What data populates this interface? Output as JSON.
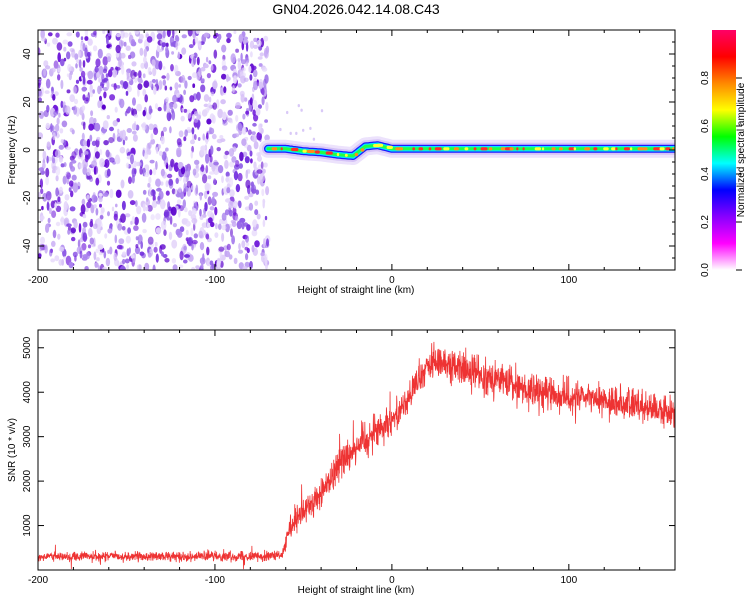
{
  "title": "GN04.2026.042.14.08.C43",
  "colors": {
    "snr_line": "#ee3333",
    "noise_dot": "#6a11d8",
    "background": "#ffffff"
  },
  "chart_data": [
    {
      "type": "heatmap",
      "name": "spectrogram",
      "xlabel": "Height of straight line (km)",
      "ylabel": "Frequency (Hz)",
      "xlim": [
        -200,
        160
      ],
      "ylim": [
        -50,
        50
      ],
      "x_ticks": [
        -200,
        -100,
        0,
        100
      ],
      "x_tick_labels": [
        "-200",
        "-100",
        "0",
        "100"
      ],
      "y_ticks": [
        -40,
        -20,
        0,
        20,
        40
      ],
      "y_tick_labels": [
        "-40",
        "-20",
        "0",
        "20",
        "40"
      ],
      "noise_region_x": [
        -200,
        -70
      ],
      "signal_start_x": -70,
      "signal_track": [
        {
          "x": -70,
          "f": 0.5
        },
        {
          "x": -60,
          "f": 0.5
        },
        {
          "x": -50,
          "f": -0.5
        },
        {
          "x": -40,
          "f": -1
        },
        {
          "x": -30,
          "f": -2
        },
        {
          "x": -22,
          "f": -2.5
        },
        {
          "x": -15,
          "f": 1.5
        },
        {
          "x": -8,
          "f": 2
        },
        {
          "x": 0,
          "f": 0.5
        },
        {
          "x": 20,
          "f": 0.5
        },
        {
          "x": 40,
          "f": 0.5
        },
        {
          "x": 60,
          "f": 0.5
        },
        {
          "x": 80,
          "f": 0.5
        },
        {
          "x": 100,
          "f": 0.5
        },
        {
          "x": 120,
          "f": 0.5
        },
        {
          "x": 140,
          "f": 0.5
        },
        {
          "x": 160,
          "f": 0.5
        }
      ],
      "colorbar": {
        "label": "Normalized spectral amplitude",
        "range": [
          0,
          1
        ],
        "ticks": [
          0.0,
          0.2,
          0.4,
          0.6,
          0.8
        ],
        "tick_labels": [
          "0.0",
          "0.2",
          "0.4",
          "0.6",
          "0.8"
        ],
        "colormap": [
          "#ffffff",
          "#ff00ff",
          "#8800ff",
          "#0000ff",
          "#00ffff",
          "#00ff00",
          "#ffff00",
          "#ff8800",
          "#ff0000",
          "#ff0066"
        ]
      }
    },
    {
      "type": "line",
      "name": "snr",
      "xlabel": "Height of straight line (km)",
      "ylabel": "SNR (10 * v/v)",
      "xlim": [
        -200,
        160
      ],
      "ylim": [
        0,
        5400
      ],
      "x_ticks": [
        -200,
        -100,
        0,
        100
      ],
      "x_tick_labels": [
        "-200",
        "-100",
        "0",
        "100"
      ],
      "y_ticks": [
        1000,
        2000,
        3000,
        4000,
        5000
      ],
      "y_tick_labels": [
        "1000",
        "2000",
        "3000",
        "4000",
        "5000"
      ],
      "series": [
        {
          "name": "SNR",
          "trend": [
            {
              "x": -200,
              "y": 300
            },
            {
              "x": -150,
              "y": 300
            },
            {
              "x": -100,
              "y": 310
            },
            {
              "x": -62,
              "y": 320
            },
            {
              "x": -58,
              "y": 900
            },
            {
              "x": -50,
              "y": 1300
            },
            {
              "x": -40,
              "y": 1700
            },
            {
              "x": -30,
              "y": 2400
            },
            {
              "x": -20,
              "y": 2800
            },
            {
              "x": -10,
              "y": 3100
            },
            {
              "x": 0,
              "y": 3400
            },
            {
              "x": 10,
              "y": 3900
            },
            {
              "x": 20,
              "y": 4600
            },
            {
              "x": 30,
              "y": 4700
            },
            {
              "x": 40,
              "y": 4500
            },
            {
              "x": 60,
              "y": 4300
            },
            {
              "x": 80,
              "y": 4000
            },
            {
              "x": 100,
              "y": 3900
            },
            {
              "x": 120,
              "y": 3800
            },
            {
              "x": 140,
              "y": 3700
            },
            {
              "x": 160,
              "y": 3500
            }
          ],
          "noise_amplitude": [
            {
              "x": -200,
              "a": 150
            },
            {
              "x": -62,
              "a": 150
            },
            {
              "x": -55,
              "a": 450
            },
            {
              "x": -20,
              "a": 600
            },
            {
              "x": 0,
              "a": 450
            },
            {
              "x": 30,
              "a": 550
            },
            {
              "x": 160,
              "a": 450
            }
          ]
        }
      ]
    }
  ]
}
